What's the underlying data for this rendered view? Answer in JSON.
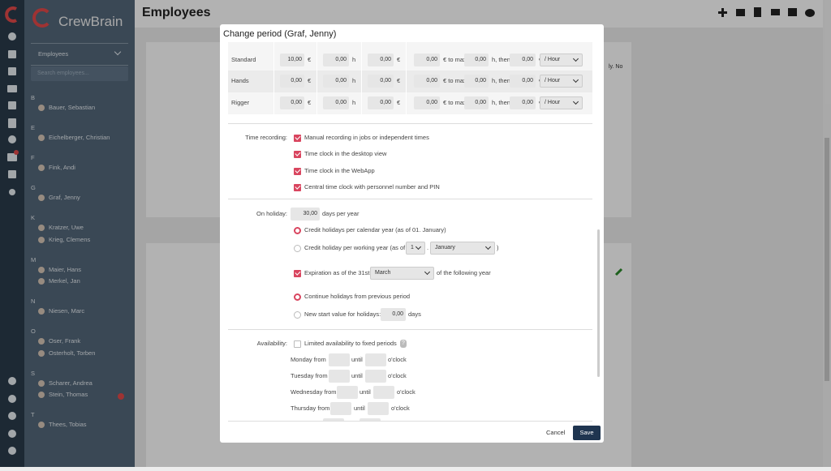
{
  "app": {
    "logo": "CrewBrain"
  },
  "header": {
    "title": "Employees"
  },
  "background_text": "ly. No",
  "sidebar": {
    "dropdown": "Employees",
    "search_placeholder": "Search employees...",
    "groups": [
      {
        "letter": "B",
        "employees": [
          "Bauer, Sebastian"
        ]
      },
      {
        "letter": "E",
        "employees": [
          "Eichelberger, Christian"
        ]
      },
      {
        "letter": "F",
        "employees": [
          "Fink, Andi"
        ]
      },
      {
        "letter": "G",
        "employees": [
          "Graf, Jenny"
        ]
      },
      {
        "letter": "K",
        "employees": [
          "Kratzer, Uwe",
          "Krieg, Clemens"
        ]
      },
      {
        "letter": "M",
        "employees": [
          "Maier, Hans",
          "Merkel, Jan"
        ]
      },
      {
        "letter": "N",
        "employees": [
          "Niesen, Marc"
        ]
      },
      {
        "letter": "O",
        "employees": [
          "Oser, Frank",
          "Osterholt, Torben"
        ]
      },
      {
        "letter": "S",
        "employees": [
          "Scharer, Andrea",
          "Stein, Thomas"
        ]
      },
      {
        "letter": "T",
        "employees": [
          "Thees, Tobias"
        ]
      }
    ]
  },
  "modal": {
    "title": "Change period (Graf, Jenny)",
    "rate_units": [
      "€",
      "h",
      "€",
      "€ to max.",
      "h, then",
      "€"
    ],
    "rates": [
      {
        "name": "Standard",
        "values": [
          "10,00",
          "0,00",
          "0,00",
          "0,00",
          "0,00",
          "0,00"
        ],
        "per": "/ Hour"
      },
      {
        "name": "Hands",
        "values": [
          "0,00",
          "0,00",
          "0,00",
          "0,00",
          "0,00",
          "0,00"
        ],
        "per": "/ Hour"
      },
      {
        "name": "Rigger",
        "values": [
          "0,00",
          "0,00",
          "0,00",
          "0,00",
          "0,00",
          "0,00"
        ],
        "per": "/ Hour"
      }
    ],
    "time_recording": {
      "label": "Time recording:",
      "options": [
        {
          "label": "Manual recording in jobs or independent times",
          "checked": true
        },
        {
          "label": "Time clock in the desktop view",
          "checked": true
        },
        {
          "label": "Time clock in the WebApp",
          "checked": true
        },
        {
          "label": "Central time clock with personnel number and PIN",
          "checked": true
        }
      ]
    },
    "holiday": {
      "label": "On holiday:",
      "days": "30,00",
      "unit": "days per year",
      "calendar_year": {
        "label": "Credit holidays per calendar year (as of 01. January)",
        "selected": true
      },
      "working_year": {
        "label": "Credit holiday per working year (as of",
        "day": "1",
        "separator": ".",
        "month": "January",
        "close": ")",
        "selected": false
      },
      "expiration": {
        "label": "Expiration as of the 31st",
        "month": "March",
        "suffix": "of the following year",
        "checked": true
      },
      "continue": {
        "label": "Continue holidays from previous period",
        "selected": true
      },
      "new_start": {
        "label": "New start value for holidays:",
        "value": "0,00",
        "unit": "days",
        "selected": false
      }
    },
    "availability": {
      "label": "Availability:",
      "option": "Limited availability to fixed periods",
      "checked": false,
      "help": "?",
      "days": [
        "Monday from",
        "Tuesday from",
        "Wednesday from",
        "Thursday from"
      ],
      "until": "until",
      "suffix": "o'clock"
    },
    "buttons": {
      "cancel": "Cancel",
      "save": "Save"
    }
  }
}
